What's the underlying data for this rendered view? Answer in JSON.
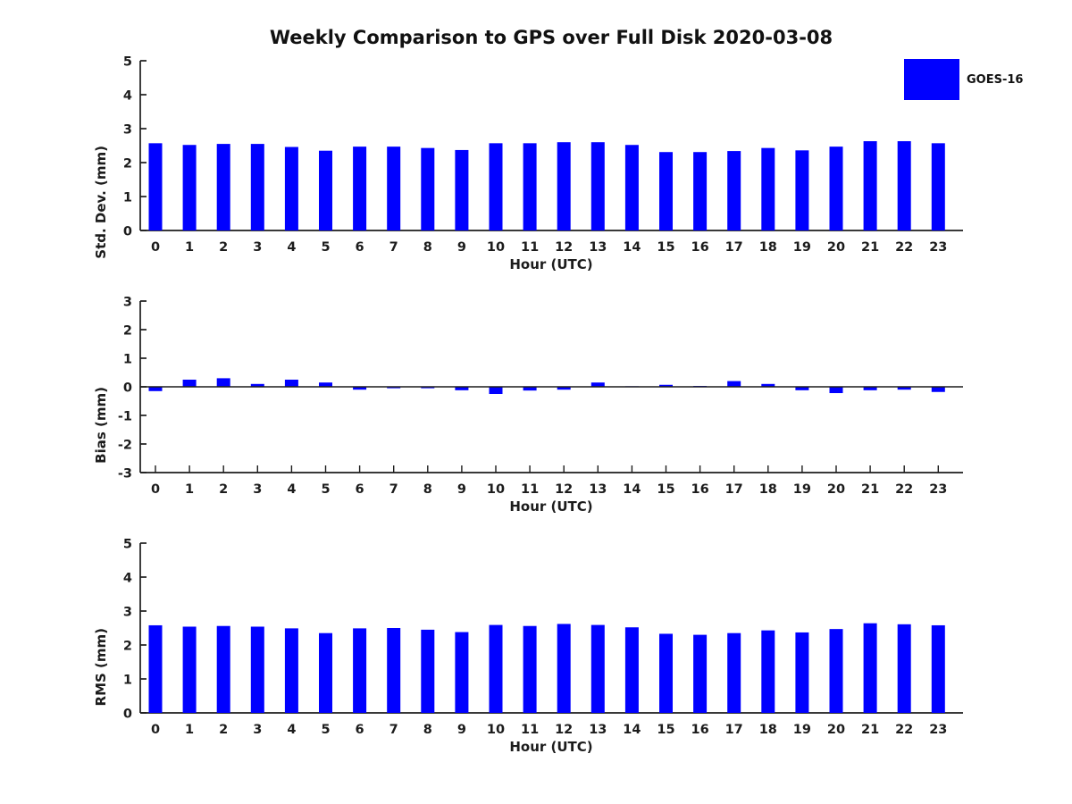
{
  "title": "Weekly Comparison to GPS over Full Disk 2020-03-08",
  "legend": {
    "label": "GOES-16",
    "color": "#0000ff"
  },
  "colors": {
    "bar": "#0000ff",
    "axis": "#1c1c1c",
    "background": "#ffffff",
    "text": "#1c1c1c"
  },
  "chart_data": [
    {
      "type": "bar",
      "name": "std-dev-panel",
      "title": "",
      "ylabel": "Std. Dev. (mm)",
      "xlabel": "Hour (UTC)",
      "ylim": [
        0,
        5
      ],
      "yticks": [
        0,
        1,
        2,
        3,
        4,
        5
      ],
      "grid": false,
      "legend_entries": [
        "GOES-16"
      ],
      "legend_position": "top-right",
      "categories": [
        "0",
        "1",
        "2",
        "3",
        "4",
        "5",
        "6",
        "7",
        "8",
        "9",
        "10",
        "11",
        "12",
        "13",
        "14",
        "15",
        "16",
        "17",
        "18",
        "19",
        "20",
        "21",
        "22",
        "23"
      ],
      "values": [
        2.57,
        2.52,
        2.55,
        2.55,
        2.46,
        2.35,
        2.47,
        2.47,
        2.43,
        2.37,
        2.57,
        2.57,
        2.6,
        2.6,
        2.52,
        2.31,
        2.31,
        2.34,
        2.43,
        2.36,
        2.47,
        2.63,
        2.63,
        2.57
      ]
    },
    {
      "type": "bar",
      "name": "bias-panel",
      "title": "",
      "ylabel": "Bias (mm)",
      "xlabel": "Hour (UTC)",
      "ylim": [
        -3,
        3
      ],
      "yticks": [
        -3,
        -2,
        -1,
        0,
        1,
        2,
        3
      ],
      "grid": false,
      "categories": [
        "0",
        "1",
        "2",
        "3",
        "4",
        "5",
        "6",
        "7",
        "8",
        "9",
        "10",
        "11",
        "12",
        "13",
        "14",
        "15",
        "16",
        "17",
        "18",
        "19",
        "20",
        "21",
        "22",
        "23"
      ],
      "values": [
        -0.15,
        0.25,
        0.3,
        0.1,
        0.25,
        0.15,
        -0.1,
        -0.05,
        -0.05,
        -0.12,
        -0.25,
        -0.13,
        -0.1,
        0.15,
        0.02,
        0.07,
        0.03,
        0.2,
        0.1,
        -0.12,
        -0.22,
        -0.12,
        -0.1,
        -0.18
      ]
    },
    {
      "type": "bar",
      "name": "rms-panel",
      "title": "",
      "ylabel": "RMS (mm)",
      "xlabel": "Hour (UTC)",
      "ylim": [
        0,
        5
      ],
      "yticks": [
        0,
        1,
        2,
        3,
        4,
        5
      ],
      "grid": false,
      "categories": [
        "0",
        "1",
        "2",
        "3",
        "4",
        "5",
        "6",
        "7",
        "8",
        "9",
        "10",
        "11",
        "12",
        "13",
        "14",
        "15",
        "16",
        "17",
        "18",
        "19",
        "20",
        "21",
        "22",
        "23"
      ],
      "values": [
        2.58,
        2.54,
        2.56,
        2.54,
        2.49,
        2.35,
        2.49,
        2.5,
        2.45,
        2.38,
        2.59,
        2.56,
        2.62,
        2.59,
        2.52,
        2.33,
        2.3,
        2.35,
        2.43,
        2.37,
        2.47,
        2.64,
        2.61,
        2.58
      ]
    }
  ]
}
